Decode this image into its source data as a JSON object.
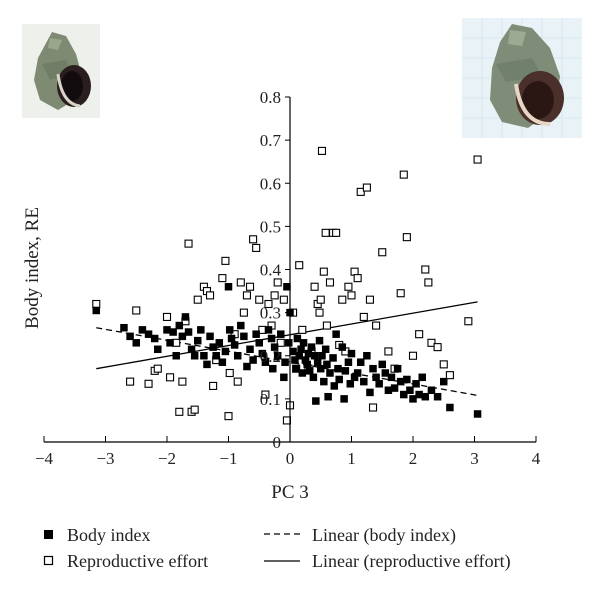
{
  "chart_data": {
    "type": "scatter",
    "xlabel": "PC 3",
    "ylabel": "Body index, RE",
    "xlim": [
      -4,
      4
    ],
    "ylim": [
      0,
      0.8
    ],
    "xticks": [
      "−4",
      "−3",
      "−2",
      "−1",
      "0",
      "1",
      "2",
      "3",
      "4"
    ],
    "yticks": [
      "0",
      "0.1",
      "0.2",
      "0.3",
      "0.4",
      "0.5",
      "0.6",
      "0.7",
      "0.8"
    ],
    "grid": false,
    "legend_position": "bottom",
    "series": [
      {
        "name": "Body index",
        "marker": "filled-square",
        "color": "#000000",
        "points": [
          [
            -3.15,
            0.305
          ],
          [
            -2.7,
            0.265
          ],
          [
            -2.6,
            0.245
          ],
          [
            -2.5,
            0.23
          ],
          [
            -2.4,
            0.26
          ],
          [
            -2.3,
            0.25
          ],
          [
            -2.2,
            0.24
          ],
          [
            -2.15,
            0.215
          ],
          [
            -2.0,
            0.26
          ],
          [
            -1.95,
            0.23
          ],
          [
            -1.9,
            0.255
          ],
          [
            -1.85,
            0.2
          ],
          [
            -1.8,
            0.27
          ],
          [
            -1.75,
            0.245
          ],
          [
            -1.7,
            0.29
          ],
          [
            -1.65,
            0.255
          ],
          [
            -1.6,
            0.215
          ],
          [
            -1.55,
            0.2
          ],
          [
            -1.5,
            0.235
          ],
          [
            -1.45,
            0.26
          ],
          [
            -1.4,
            0.2
          ],
          [
            -1.35,
            0.18
          ],
          [
            -1.3,
            0.245
          ],
          [
            -1.25,
            0.22
          ],
          [
            -1.2,
            0.2
          ],
          [
            -1.15,
            0.23
          ],
          [
            -1.1,
            0.185
          ],
          [
            -1.05,
            0.21
          ],
          [
            -1.0,
            0.36
          ],
          [
            -0.98,
            0.26
          ],
          [
            -0.95,
            0.24
          ],
          [
            -0.9,
            0.225
          ],
          [
            -0.85,
            0.2
          ],
          [
            -0.8,
            0.27
          ],
          [
            -0.75,
            0.245
          ],
          [
            -0.7,
            0.175
          ],
          [
            -0.65,
            0.215
          ],
          [
            -0.6,
            0.19
          ],
          [
            -0.55,
            0.25
          ],
          [
            -0.5,
            0.23
          ],
          [
            -0.45,
            0.205
          ],
          [
            -0.4,
            0.185
          ],
          [
            -0.35,
            0.26
          ],
          [
            -0.3,
            0.24
          ],
          [
            -0.28,
            0.17
          ],
          [
            -0.25,
            0.22
          ],
          [
            -0.2,
            0.2
          ],
          [
            -0.15,
            0.25
          ],
          [
            -0.1,
            0.15
          ],
          [
            -0.08,
            0.185
          ],
          [
            -0.05,
            0.36
          ],
          [
            -0.02,
            0.23
          ],
          [
            0.0,
            0.3
          ],
          [
            0.05,
            0.21
          ],
          [
            0.08,
            0.19
          ],
          [
            0.1,
            0.17
          ],
          [
            0.12,
            0.24
          ],
          [
            0.15,
            0.2
          ],
          [
            0.18,
            0.215
          ],
          [
            0.2,
            0.16
          ],
          [
            0.22,
            0.23
          ],
          [
            0.25,
            0.19
          ],
          [
            0.28,
            0.18
          ],
          [
            0.3,
            0.205
          ],
          [
            0.32,
            0.165
          ],
          [
            0.35,
            0.22
          ],
          [
            0.38,
            0.15
          ],
          [
            0.4,
            0.2
          ],
          [
            0.42,
            0.095
          ],
          [
            0.45,
            0.185
          ],
          [
            0.48,
            0.235
          ],
          [
            0.5,
            0.17
          ],
          [
            0.52,
            0.2
          ],
          [
            0.55,
            0.14
          ],
          [
            0.58,
            0.215
          ],
          [
            0.6,
            0.18
          ],
          [
            0.62,
            0.105
          ],
          [
            0.65,
            0.16
          ],
          [
            0.7,
            0.195
          ],
          [
            0.72,
            0.13
          ],
          [
            0.75,
            0.25
          ],
          [
            0.78,
            0.17
          ],
          [
            0.8,
            0.145
          ],
          [
            0.85,
            0.22
          ],
          [
            0.88,
            0.1
          ],
          [
            0.9,
            0.165
          ],
          [
            0.95,
            0.185
          ],
          [
            0.98,
            0.135
          ],
          [
            1.0,
            0.205
          ],
          [
            1.05,
            0.15
          ],
          [
            1.1,
            0.16
          ],
          [
            1.15,
            0.185
          ],
          [
            1.2,
            0.14
          ],
          [
            1.25,
            0.2
          ],
          [
            1.3,
            0.115
          ],
          [
            1.35,
            0.17
          ],
          [
            1.4,
            0.15
          ],
          [
            1.45,
            0.135
          ],
          [
            1.5,
            0.18
          ],
          [
            1.55,
            0.16
          ],
          [
            1.6,
            0.12
          ],
          [
            1.65,
            0.15
          ],
          [
            1.7,
            0.125
          ],
          [
            1.75,
            0.17
          ],
          [
            1.8,
            0.14
          ],
          [
            1.85,
            0.11
          ],
          [
            1.9,
            0.145
          ],
          [
            1.95,
            0.12
          ],
          [
            2.0,
            0.1
          ],
          [
            2.05,
            0.135
          ],
          [
            2.1,
            0.11
          ],
          [
            2.15,
            0.15
          ],
          [
            2.2,
            0.105
          ],
          [
            2.3,
            0.12
          ],
          [
            2.4,
            0.105
          ],
          [
            2.5,
            0.14
          ],
          [
            2.6,
            0.08
          ],
          [
            3.05,
            0.065
          ]
        ]
      },
      {
        "name": "Reproductive effort",
        "marker": "open-square",
        "color": "#000000",
        "points": [
          [
            -3.15,
            0.32
          ],
          [
            -2.6,
            0.14
          ],
          [
            -2.5,
            0.305
          ],
          [
            -2.3,
            0.135
          ],
          [
            -2.2,
            0.165
          ],
          [
            -2.15,
            0.17
          ],
          [
            -2.0,
            0.29
          ],
          [
            -1.95,
            0.15
          ],
          [
            -1.85,
            0.23
          ],
          [
            -1.8,
            0.07
          ],
          [
            -1.75,
            0.14
          ],
          [
            -1.7,
            0.28
          ],
          [
            -1.65,
            0.46
          ],
          [
            -1.6,
            0.07
          ],
          [
            -1.55,
            0.075
          ],
          [
            -1.5,
            0.33
          ],
          [
            -1.4,
            0.36
          ],
          [
            -1.35,
            0.35
          ],
          [
            -1.3,
            0.34
          ],
          [
            -1.25,
            0.13
          ],
          [
            -1.2,
            0.19
          ],
          [
            -1.1,
            0.38
          ],
          [
            -1.05,
            0.42
          ],
          [
            -1.0,
            0.06
          ],
          [
            -0.98,
            0.16
          ],
          [
            -0.9,
            0.25
          ],
          [
            -0.85,
            0.14
          ],
          [
            -0.8,
            0.37
          ],
          [
            -0.75,
            0.3
          ],
          [
            -0.7,
            0.34
          ],
          [
            -0.65,
            0.36
          ],
          [
            -0.6,
            0.47
          ],
          [
            -0.55,
            0.45
          ],
          [
            -0.5,
            0.33
          ],
          [
            -0.45,
            0.26
          ],
          [
            -0.4,
            0.11
          ],
          [
            -0.35,
            0.32
          ],
          [
            -0.3,
            0.27
          ],
          [
            -0.25,
            0.34
          ],
          [
            -0.2,
            0.37
          ],
          [
            -0.15,
            0.23
          ],
          [
            -0.1,
            0.33
          ],
          [
            -0.05,
            0.05
          ],
          [
            0.0,
            0.085
          ],
          [
            0.05,
            0.3
          ],
          [
            0.1,
            0.17
          ],
          [
            0.15,
            0.41
          ],
          [
            0.2,
            0.26
          ],
          [
            0.25,
            0.2
          ],
          [
            0.3,
            0.17
          ],
          [
            0.35,
            0.21
          ],
          [
            0.4,
            0.36
          ],
          [
            0.45,
            0.32
          ],
          [
            0.48,
            0.3
          ],
          [
            0.5,
            0.33
          ],
          [
            0.52,
            0.675
          ],
          [
            0.55,
            0.395
          ],
          [
            0.58,
            0.485
          ],
          [
            0.6,
            0.27
          ],
          [
            0.65,
            0.37
          ],
          [
            0.7,
            0.485
          ],
          [
            0.75,
            0.485
          ],
          [
            0.8,
            0.225
          ],
          [
            0.85,
            0.33
          ],
          [
            0.9,
            0.21
          ],
          [
            0.95,
            0.36
          ],
          [
            1.0,
            0.34
          ],
          [
            1.05,
            0.395
          ],
          [
            1.1,
            0.38
          ],
          [
            1.15,
            0.58
          ],
          [
            1.2,
            0.29
          ],
          [
            1.25,
            0.59
          ],
          [
            1.3,
            0.33
          ],
          [
            1.35,
            0.08
          ],
          [
            1.4,
            0.27
          ],
          [
            1.5,
            0.44
          ],
          [
            1.6,
            0.21
          ],
          [
            1.7,
            0.17
          ],
          [
            1.8,
            0.345
          ],
          [
            1.85,
            0.62
          ],
          [
            1.9,
            0.475
          ],
          [
            2.0,
            0.2
          ],
          [
            2.1,
            0.25
          ],
          [
            2.2,
            0.4
          ],
          [
            2.25,
            0.37
          ],
          [
            2.3,
            0.23
          ],
          [
            2.4,
            0.22
          ],
          [
            2.5,
            0.18
          ],
          [
            2.6,
            0.155
          ],
          [
            2.9,
            0.28
          ],
          [
            3.05,
            0.655
          ]
        ]
      }
    ],
    "fit_lines": [
      {
        "name": "Linear (body index)",
        "style": "dashed",
        "from": [
          -3.15,
          0.265
        ],
        "to": [
          3.05,
          0.108
        ]
      },
      {
        "name": "Linear (reproductive effort)",
        "style": "solid",
        "from": [
          -3.15,
          0.17
        ],
        "to": [
          3.05,
          0.325
        ]
      }
    ]
  },
  "images": {
    "small_shell": "snail-shell-small",
    "large_shell": "snail-shell-large"
  }
}
